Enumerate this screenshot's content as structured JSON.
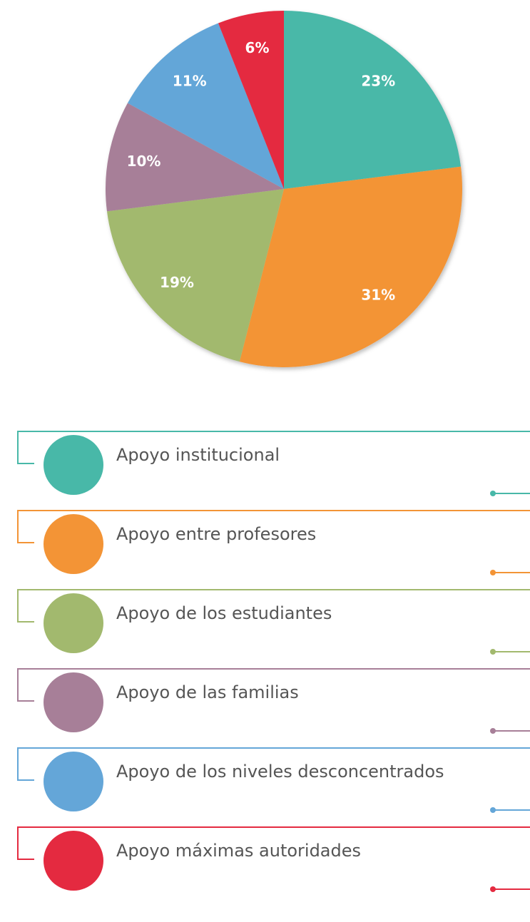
{
  "chart_data": {
    "type": "pie",
    "categories": [
      "Apoyo institucional",
      "Apoyo entre profesores",
      "Apoyo de los estudiantes",
      "Apoyo de las familias",
      "Apoyo de los niveles desconcentrados",
      "Apoyo máximas autoridades"
    ],
    "values": [
      23,
      31,
      19,
      10,
      11,
      6
    ],
    "value_labels": [
      "23%",
      "31%",
      "19%",
      "10%",
      "11%",
      "6%"
    ],
    "colors": [
      "#48b8a8",
      "#f39436",
      "#a2b96e",
      "#a77f98",
      "#64a6d8",
      "#e42a40"
    ]
  }
}
